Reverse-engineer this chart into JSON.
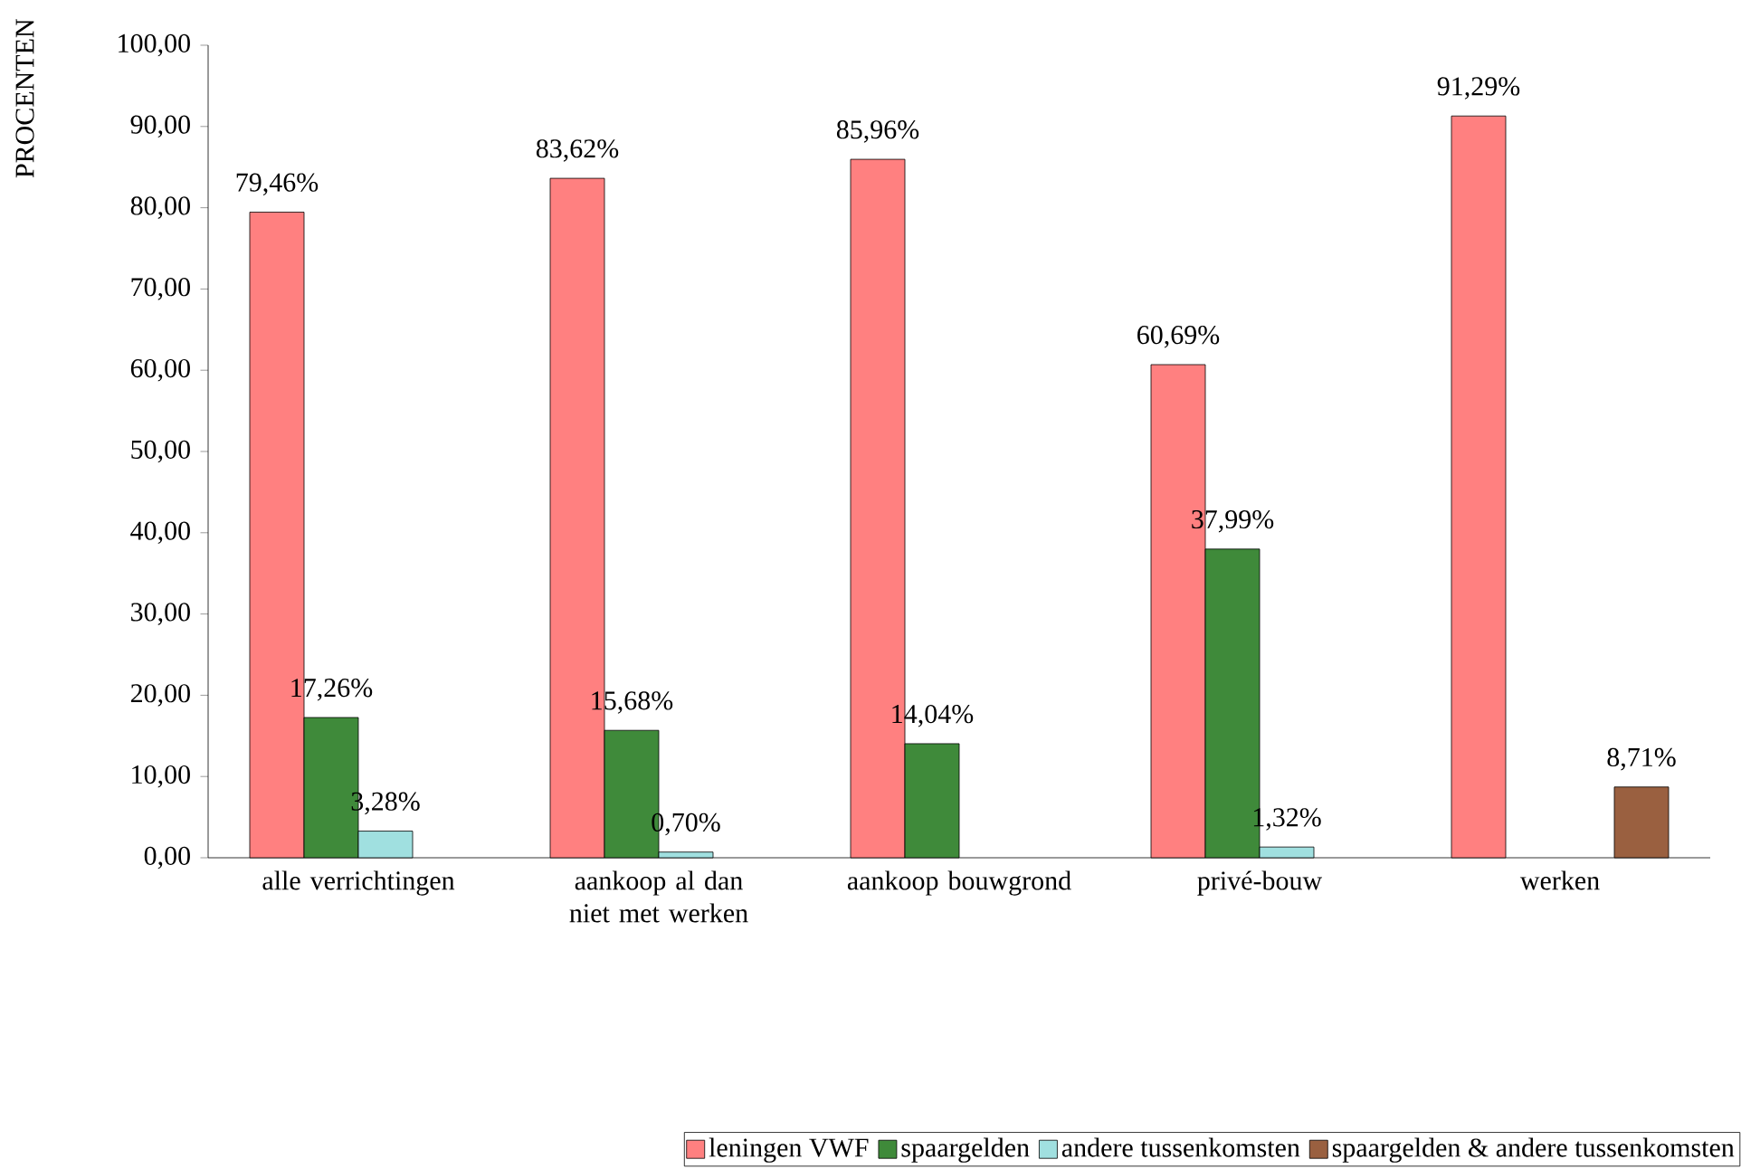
{
  "chart_data": {
    "type": "bar",
    "ylabel": "PROCENTEN",
    "categories": [
      "alle verrichtingen",
      "aankoop al dan niet met werken",
      "aankoop bouwgrond",
      "privé-bouw",
      "werken"
    ],
    "series": [
      {
        "name": "leningen VWF",
        "color": "#ff8080",
        "values": [
          79.46,
          83.62,
          85.96,
          60.69,
          91.29
        ],
        "value_labels": [
          "79,46%",
          "83,62%",
          "85,96%",
          "60,69%",
          "91,29%"
        ]
      },
      {
        "name": "spaargelden",
        "color": "#3f8a3a",
        "values": [
          17.26,
          15.68,
          14.04,
          37.99,
          null
        ],
        "value_labels": [
          "17,26%",
          "15,68%",
          "14,04%",
          "37,99%",
          null
        ]
      },
      {
        "name": "andere tussenkomsten",
        "color": "#a0e0e0",
        "values": [
          3.28,
          0.7,
          null,
          1.32,
          null
        ],
        "value_labels": [
          "3,28%",
          "0,70%",
          null,
          "1,32%",
          null
        ]
      },
      {
        "name": "spaargelden & andere tussenkomsten",
        "color": "#9a6040",
        "values": [
          null,
          null,
          null,
          null,
          8.71
        ],
        "value_labels": [
          null,
          null,
          null,
          null,
          "8,71%"
        ]
      }
    ],
    "ylim": [
      0,
      100
    ],
    "yticks": [
      {
        "value": 0,
        "label": "0,00"
      },
      {
        "value": 10,
        "label": "10,00"
      },
      {
        "value": 20,
        "label": "20,00"
      },
      {
        "value": 30,
        "label": "30,00"
      },
      {
        "value": 40,
        "label": "40,00"
      },
      {
        "value": 50,
        "label": "50,00"
      },
      {
        "value": 60,
        "label": "60,00"
      },
      {
        "value": 70,
        "label": "70,00"
      },
      {
        "value": 80,
        "label": "80,00"
      },
      {
        "value": 90,
        "label": "90,00"
      },
      {
        "value": 100,
        "label": "100,00"
      }
    ],
    "legend": "bottom right"
  }
}
